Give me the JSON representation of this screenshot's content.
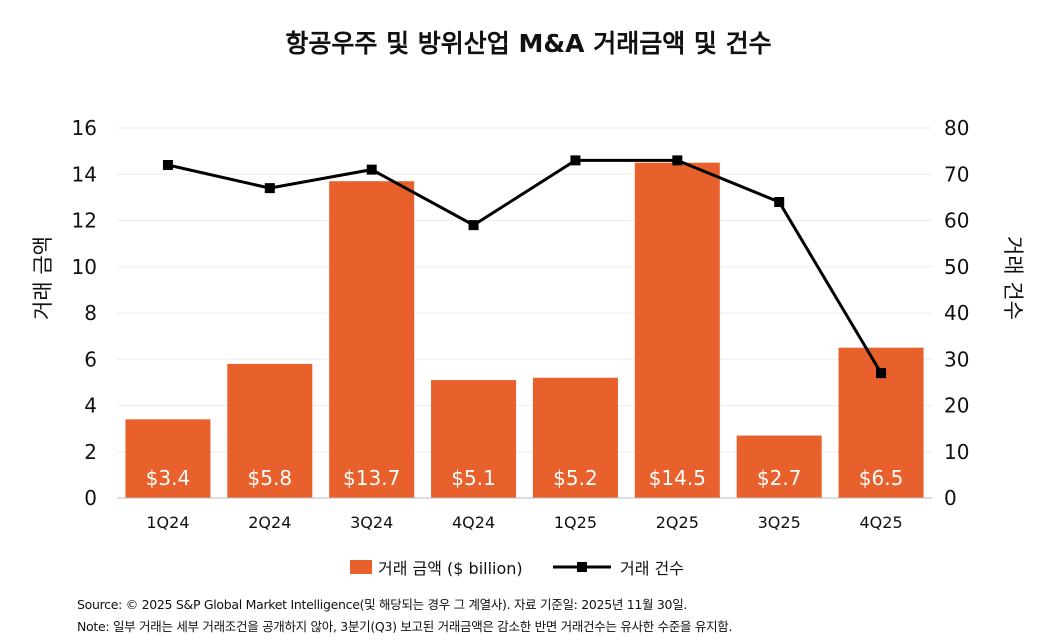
{
  "chart_data": {
    "type": "bar+line",
    "title": "항공우주 및 방위산업 M&A 거래금액 및 건수",
    "categories": [
      "1Q24",
      "2Q24",
      "3Q24",
      "4Q24",
      "1Q25",
      "2Q25",
      "3Q25",
      "4Q25"
    ],
    "series": [
      {
        "name": "거래 금액 ($ billion)",
        "type": "bar",
        "axis": "left",
        "color": "#e8602c",
        "values": [
          3.4,
          5.8,
          13.7,
          5.1,
          5.2,
          14.5,
          2.7,
          6.5
        ],
        "labels": [
          "$3.4",
          "$5.8",
          "$13.7",
          "$5.1",
          "$5.2",
          "$14.5",
          "$2.7",
          "$6.5"
        ]
      },
      {
        "name": "거래 건수",
        "type": "line",
        "axis": "right",
        "color": "#000000",
        "values": [
          72,
          67,
          71,
          59,
          73,
          73,
          64,
          27
        ]
      }
    ],
    "ylabel_left": "거래 금액",
    "ylabel_right": "거래 건수",
    "ylim_left": [
      0,
      16
    ],
    "yticks_left": [
      0,
      2,
      4,
      6,
      8,
      10,
      12,
      14,
      16
    ],
    "ylim_right": [
      0,
      80
    ],
    "yticks_right": [
      0,
      10,
      20,
      30,
      40,
      50,
      60,
      70,
      80
    ],
    "grid": true,
    "legend": "bottom"
  },
  "notes": {
    "source": "Source: © 2025 S&P Global Market Intelligence(및 해당되는 경우 그 계열사). 자료 기준일: 2025년 11월 30일.",
    "note": "Note: 일부 거래는 세부 거래조건을 공개하지 않아, 3분기(Q3) 보고된 거래금액은 감소한 반면 거래건수는 유사한 수준을 유지함."
  }
}
